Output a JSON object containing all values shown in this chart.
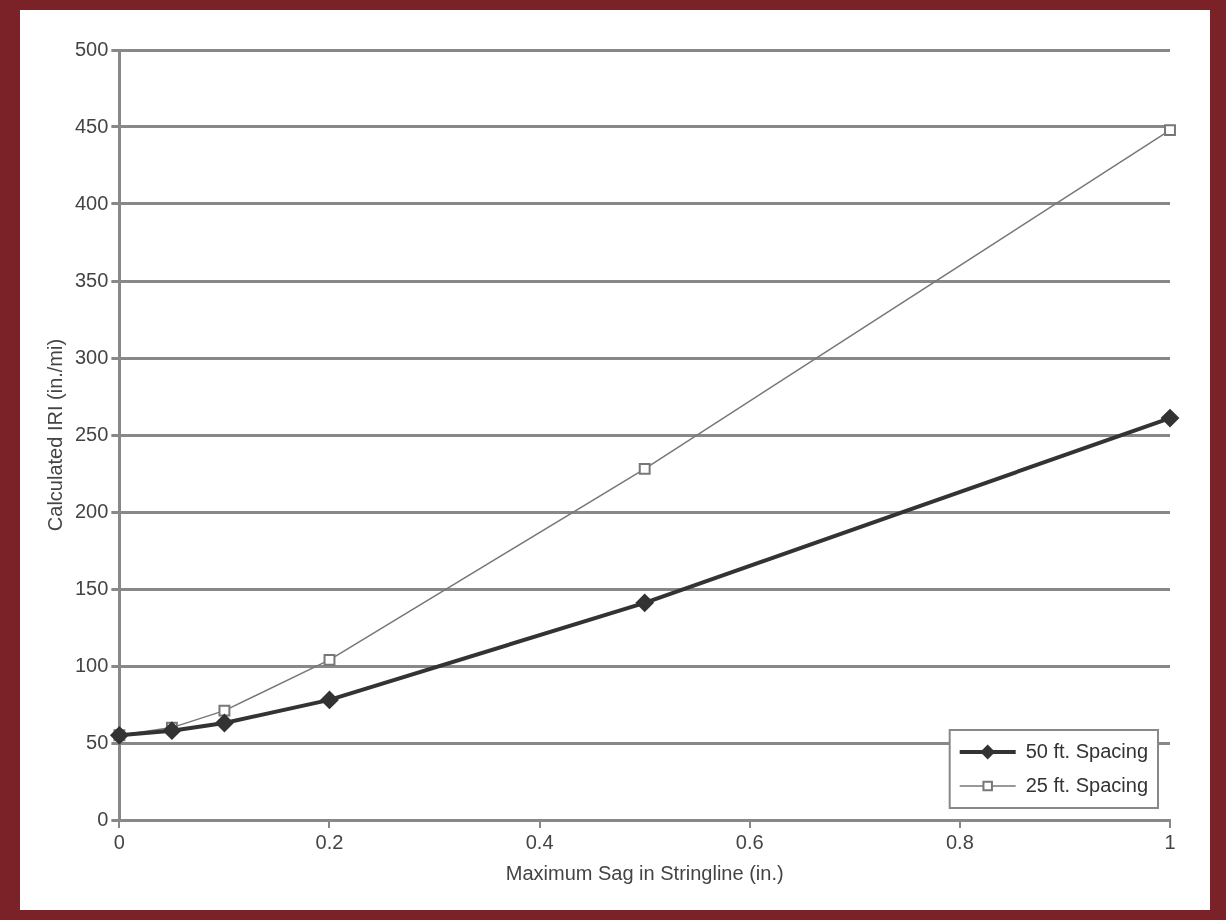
{
  "chart_data": {
    "type": "line",
    "xlabel": "Maximum Sag in Stringline (in.)",
    "ylabel": "Calculated IRI (in./mi)",
    "x": [
      0,
      0.05,
      0.1,
      0.2,
      0.5,
      1
    ],
    "series": [
      {
        "name": "50 ft. Spacing",
        "color": "#333333",
        "marker": "diamond",
        "values": [
          55,
          58,
          63,
          78,
          141,
          261
        ]
      },
      {
        "name": "25 ft. Spacing",
        "color": "#777777",
        "marker": "square",
        "values": [
          55,
          60,
          71,
          104,
          228,
          448
        ]
      }
    ],
    "xlim": [
      0,
      1
    ],
    "xticks": [
      0,
      0.2,
      0.4,
      0.6,
      0.8,
      1
    ],
    "ylim": [
      0,
      500
    ],
    "yticks": [
      0,
      50,
      100,
      150,
      200,
      250,
      300,
      350,
      400,
      450,
      500
    ],
    "grid": "y",
    "legend": "bottom right",
    "line_style": "solid"
  }
}
